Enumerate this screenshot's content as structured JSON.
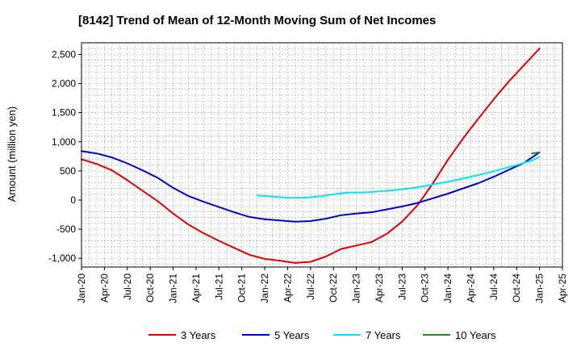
{
  "chart_data": {
    "type": "line",
    "title": "[8142]  Trend of Mean of 12-Month Moving Sum of Net Incomes",
    "ylabel": "Amount (million yen)",
    "xlabel": "",
    "ylim": [
      -1150,
      2700
    ],
    "yticks": [
      -1000,
      -500,
      0,
      500,
      1000,
      1500,
      2000,
      2500
    ],
    "ytick_labels": [
      "-1,000",
      "-500",
      "0",
      "500",
      "1,000",
      "1,500",
      "2,000",
      "2,500"
    ],
    "xticks": [
      "2020-01",
      "2020-04",
      "2020-07",
      "2020-10",
      "2021-01",
      "2021-04",
      "2021-07",
      "2021-10",
      "2022-01",
      "2022-04",
      "2022-07",
      "2022-10",
      "2023-01",
      "2023-04",
      "2023-07",
      "2023-10",
      "2024-01",
      "2024-04",
      "2024-07",
      "2024-10",
      "2025-01",
      "2025-04"
    ],
    "xtick_labels": [
      "Jan-20",
      "Apr-20",
      "Jul-20",
      "Oct-20",
      "Jan-21",
      "Apr-21",
      "Jul-21",
      "Oct-21",
      "Jan-22",
      "Apr-22",
      "Jul-22",
      "Oct-22",
      "Jan-23",
      "Apr-23",
      "Jul-23",
      "Oct-23",
      "Jan-24",
      "Apr-24",
      "Jul-24",
      "Oct-24",
      "Jan-25",
      "Apr-25"
    ],
    "xlim": [
      "2020-01",
      "2025-04"
    ],
    "grid": true,
    "legend_position": "bottom",
    "series": [
      {
        "name": "3 Years",
        "color": "#e00000",
        "points": [
          [
            "2020-01",
            700
          ],
          [
            "2020-03",
            620
          ],
          [
            "2020-05",
            510
          ],
          [
            "2020-07",
            340
          ],
          [
            "2020-09",
            160
          ],
          [
            "2020-11",
            -20
          ],
          [
            "2021-01",
            -230
          ],
          [
            "2021-03",
            -420
          ],
          [
            "2021-05",
            -570
          ],
          [
            "2021-07",
            -700
          ],
          [
            "2021-09",
            -820
          ],
          [
            "2021-11",
            -940
          ],
          [
            "2022-01",
            -1010
          ],
          [
            "2022-03",
            -1040
          ],
          [
            "2022-05",
            -1080
          ],
          [
            "2022-07",
            -1060
          ],
          [
            "2022-09",
            -970
          ],
          [
            "2022-11",
            -840
          ],
          [
            "2023-01",
            -780
          ],
          [
            "2023-03",
            -720
          ],
          [
            "2023-05",
            -580
          ],
          [
            "2023-07",
            -370
          ],
          [
            "2023-09",
            -90
          ],
          [
            "2023-11",
            280
          ],
          [
            "2024-01",
            690
          ],
          [
            "2024-03",
            1060
          ],
          [
            "2024-05",
            1400
          ],
          [
            "2024-07",
            1730
          ],
          [
            "2024-09",
            2040
          ],
          [
            "2024-11",
            2320
          ],
          [
            "2025-01",
            2600
          ]
        ]
      },
      {
        "name": "5 Years",
        "color": "#0000cc",
        "points": [
          [
            "2020-01",
            840
          ],
          [
            "2020-03",
            800
          ],
          [
            "2020-05",
            730
          ],
          [
            "2020-07",
            630
          ],
          [
            "2020-09",
            510
          ],
          [
            "2020-11",
            380
          ],
          [
            "2021-01",
            210
          ],
          [
            "2021-03",
            70
          ],
          [
            "2021-05",
            -30
          ],
          [
            "2021-07",
            -120
          ],
          [
            "2021-09",
            -210
          ],
          [
            "2021-11",
            -290
          ],
          [
            "2022-01",
            -330
          ],
          [
            "2022-03",
            -350
          ],
          [
            "2022-05",
            -370
          ],
          [
            "2022-07",
            -360
          ],
          [
            "2022-09",
            -320
          ],
          [
            "2022-11",
            -260
          ],
          [
            "2023-01",
            -230
          ],
          [
            "2023-03",
            -210
          ],
          [
            "2023-05",
            -160
          ],
          [
            "2023-07",
            -110
          ],
          [
            "2023-09",
            -50
          ],
          [
            "2023-11",
            30
          ],
          [
            "2024-01",
            110
          ],
          [
            "2024-03",
            200
          ],
          [
            "2024-05",
            290
          ],
          [
            "2024-07",
            400
          ],
          [
            "2024-09",
            520
          ],
          [
            "2024-11",
            640
          ],
          [
            "2025-01",
            820
          ]
        ]
      },
      {
        "name": "7 Years",
        "color": "#00e5ee",
        "points": [
          [
            "2021-12",
            80
          ],
          [
            "2022-02",
            60
          ],
          [
            "2022-04",
            40
          ],
          [
            "2022-06",
            40
          ],
          [
            "2022-08",
            60
          ],
          [
            "2022-10",
            100
          ],
          [
            "2022-12",
            130
          ],
          [
            "2023-02",
            130
          ],
          [
            "2023-04",
            150
          ],
          [
            "2023-06",
            170
          ],
          [
            "2023-08",
            200
          ],
          [
            "2023-10",
            240
          ],
          [
            "2023-12",
            290
          ],
          [
            "2024-02",
            340
          ],
          [
            "2024-04",
            400
          ],
          [
            "2024-06",
            460
          ],
          [
            "2024-08",
            530
          ],
          [
            "2024-10",
            600
          ],
          [
            "2024-12",
            680
          ],
          [
            "2025-01",
            740
          ]
        ]
      },
      {
        "name": "10 Years",
        "color": "#228b22",
        "points": [
          [
            "2024-12",
            800
          ],
          [
            "2025-01",
            820
          ]
        ]
      }
    ]
  }
}
